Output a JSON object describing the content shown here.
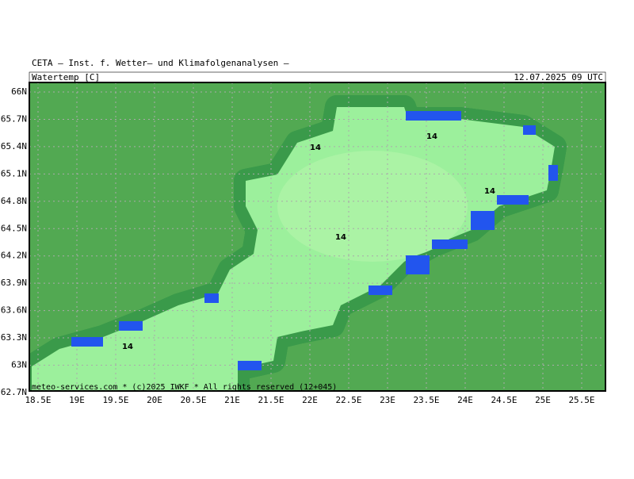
{
  "header": {
    "title": "CETA — Inst. f. Wetter— und Klimafolgenanalysen —",
    "parameter": "Watertemp [C]",
    "valid_time": "12.07.2025 09 UTC"
  },
  "axes": {
    "lat_labels": [
      "66N",
      "65.7N",
      "65.4N",
      "65.1N",
      "64.8N",
      "64.5N",
      "64.2N",
      "63.9N",
      "63.6N",
      "63.3N",
      "63N",
      "62.7N"
    ],
    "lon_labels": [
      "18.5E",
      "19E",
      "19.5E",
      "20E",
      "20.5E",
      "21E",
      "21.5E",
      "22E",
      "22.5E",
      "23E",
      "23.5E",
      "24E",
      "24.5E",
      "25E",
      "25.5E"
    ]
  },
  "contour_labels": [
    "14",
    "14",
    "14",
    "14",
    "14"
  ],
  "footer": "meteo-services.com * (c)2025 IWKF * All rights reserved (12+045)"
}
